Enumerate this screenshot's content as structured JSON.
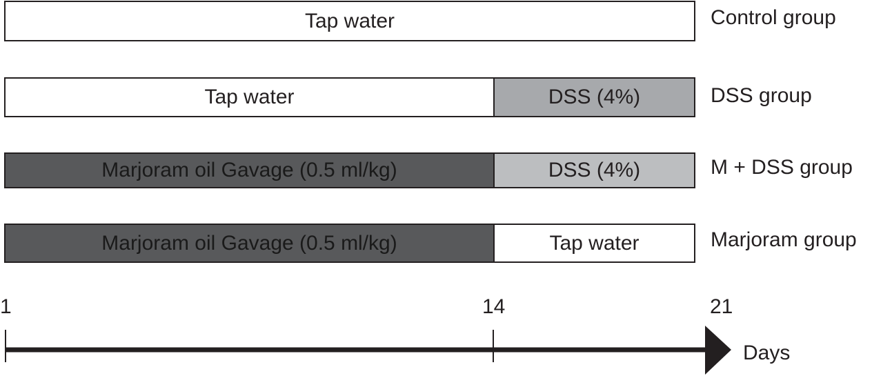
{
  "colors": {
    "white": "#ffffff",
    "dss_mid": "#a7a9ac",
    "dss_light": "#bcbec0",
    "marjoram_dark": "#58595b",
    "ink": "#231f20"
  },
  "groups": [
    {
      "label": "Control group",
      "segments": [
        {
          "text": "Tap water",
          "start_day": 1,
          "end_day": 21,
          "fill": "white"
        }
      ]
    },
    {
      "label": "DSS group",
      "segments": [
        {
          "text": "Tap water",
          "start_day": 1,
          "end_day": 14,
          "fill": "white"
        },
        {
          "text": "DSS (4%)",
          "start_day": 14,
          "end_day": 21,
          "fill": "dss_mid"
        }
      ]
    },
    {
      "label": "M + DSS group",
      "segments": [
        {
          "text": "Marjoram oil Gavage (0.5 ml/kg)",
          "start_day": 1,
          "end_day": 14,
          "fill": "marjoram_dark"
        },
        {
          "text": "DSS (4%)",
          "start_day": 14,
          "end_day": 21,
          "fill": "dss_light"
        }
      ]
    },
    {
      "label": "Marjoram group",
      "segments": [
        {
          "text": "Marjoram oil Gavage (0.5 ml/kg)",
          "start_day": 1,
          "end_day": 14,
          "fill": "marjoram_dark"
        },
        {
          "text": "Tap water",
          "start_day": 14,
          "end_day": 21,
          "fill": "white"
        }
      ]
    }
  ],
  "timeline": {
    "ticks": [
      {
        "day": 1,
        "label": "1"
      },
      {
        "day": 14,
        "label": "14"
      },
      {
        "day": 21,
        "label": "21"
      }
    ],
    "unit": "Days"
  }
}
